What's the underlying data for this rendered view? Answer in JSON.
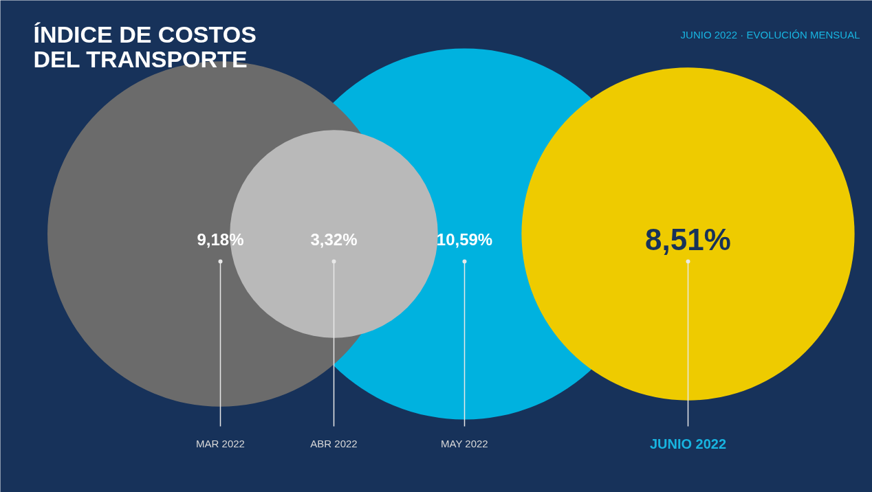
{
  "chart_data": {
    "type": "other",
    "title": "ÍNDICE DE COSTOS\nDEL TRANSPORTE",
    "subtitle": "JUNIO 2022 · EVOLUCIÓN MENSUAL",
    "categories": [
      "MAR 2022",
      "ABR 2022",
      "MAY 2022",
      "JUNIO 2022"
    ],
    "values": [
      9.18,
      3.32,
      10.59,
      8.51
    ],
    "value_labels": [
      "9,18%",
      "3,32%",
      "10,59%",
      "8,51%"
    ],
    "colors": [
      "#6b6b6b",
      "#b9b9b9",
      "#00b2df",
      "#eecb00"
    ]
  }
}
